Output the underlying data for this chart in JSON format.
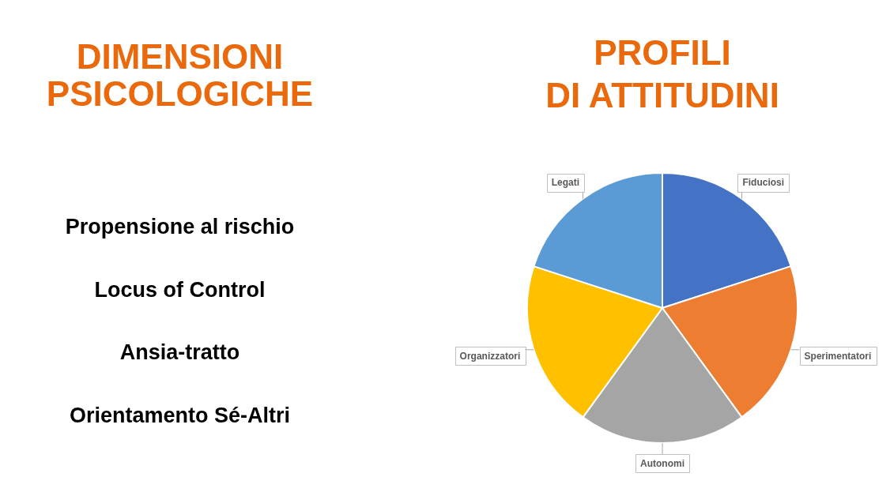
{
  "chart_data": [
    {
      "type": "other",
      "title": "DIMENSIONI\nPSICOLOGICHE",
      "annotations": [
        "Propensione al rischio",
        "Locus of Control",
        "Ansia-tratto",
        "Orientamento Sé-Altri"
      ]
    },
    {
      "type": "pie",
      "title": "PROFILI\nDI ATTITUDINI",
      "categories": [
        "Fiduciosi",
        "Sperimentatori",
        "Autonomi",
        "Organizzatori",
        "Legati"
      ],
      "values": [
        20,
        20,
        20,
        20,
        20
      ],
      "colors": [
        "#4472c4",
        "#ed7d31",
        "#a5a5a5",
        "#ffc000",
        "#5b9bd5"
      ]
    }
  ]
}
